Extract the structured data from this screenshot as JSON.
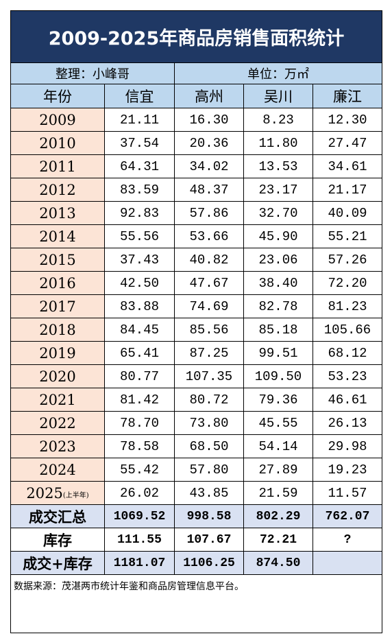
{
  "title": "2009-2025年商品房销售面积统计",
  "compiler": "整理：小峰哥",
  "unit": "单位：万㎡",
  "table": {
    "header": [
      "年份",
      "信宜",
      "高州",
      "吴川",
      "廉江"
    ],
    "rows": [
      [
        "2009",
        "21.11",
        "16.30",
        "8.23",
        "12.30"
      ],
      [
        "2010",
        "37.54",
        "20.36",
        "11.80",
        "27.47"
      ],
      [
        "2011",
        "64.31",
        "34.02",
        "13.53",
        "34.61"
      ],
      [
        "2012",
        "83.59",
        "48.37",
        "23.17",
        "21.17"
      ],
      [
        "2013",
        "92.83",
        "57.86",
        "32.70",
        "40.09"
      ],
      [
        "2014",
        "55.56",
        "53.66",
        "45.90",
        "55.21"
      ],
      [
        "2015",
        "37.43",
        "40.82",
        "23.06",
        "57.26"
      ],
      [
        "2016",
        "42.50",
        "47.67",
        "38.40",
        "72.20"
      ],
      [
        "2017",
        "83.88",
        "74.69",
        "82.78",
        "81.23"
      ],
      [
        "2018",
        "84.45",
        "85.56",
        "85.18",
        "105.66"
      ],
      [
        "2019",
        "65.41",
        "87.25",
        "99.51",
        "68.12"
      ],
      [
        "2020",
        "80.77",
        "107.35",
        "109.50",
        "53.23"
      ],
      [
        "2021",
        "81.42",
        "80.72",
        "79.36",
        "46.61"
      ],
      [
        "2022",
        "78.70",
        "73.80",
        "45.55",
        "26.13"
      ],
      [
        "2023",
        "78.58",
        "68.50",
        "54.14",
        "29.98"
      ],
      [
        "2024",
        "55.42",
        "57.80",
        "27.89",
        "19.23"
      ],
      [
        "2025",
        "26.02",
        "43.85",
        "21.59",
        "11.57"
      ]
    ],
    "year_note": "(上半年)",
    "summary": [
      [
        "成交汇总",
        "1069.52",
        "998.58",
        "802.29",
        "762.07"
      ],
      [
        "库存",
        "111.55",
        "107.67",
        "72.21",
        "?"
      ],
      [
        "成交+库存",
        "1181.07",
        "1106.25",
        "874.50"
      ]
    ]
  },
  "footnote": "数据来源：茂湛两市统计年鉴和商品房管理信息平台。"
}
